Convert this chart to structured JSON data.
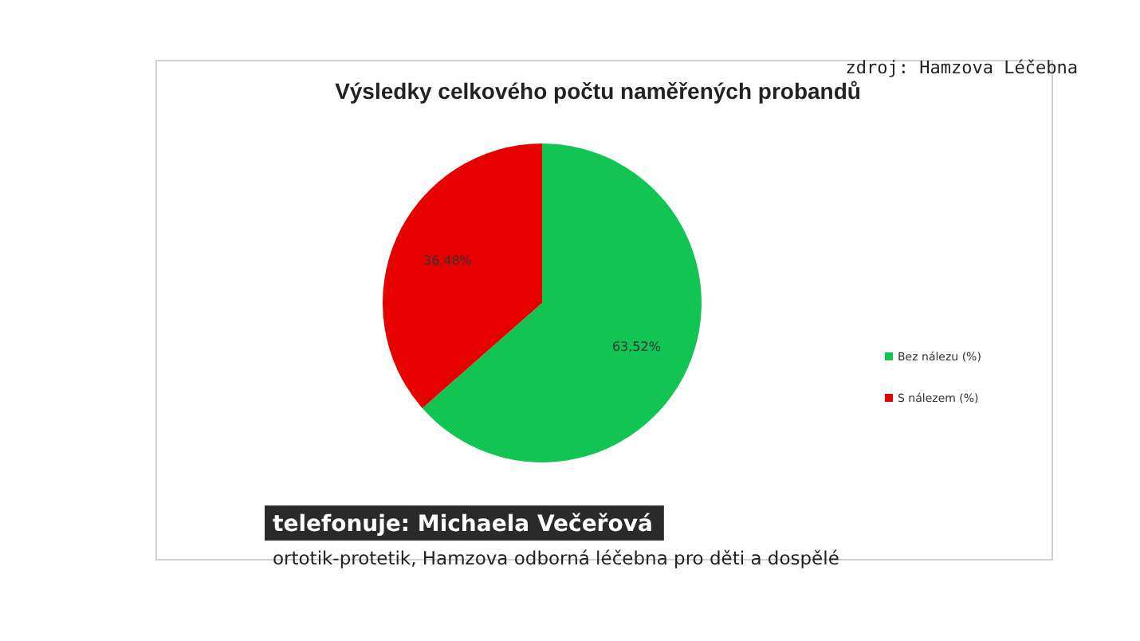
{
  "chart_data": {
    "type": "pie",
    "title": "Výsledky celkového počtu  naměřených probandů",
    "categories": [
      "Bez nálezu (%)",
      "S nálezem (%)"
    ],
    "values": [
      63.52,
      36.48
    ],
    "colors": [
      "#12c452",
      "#e60000"
    ],
    "value_labels": [
      "63,52%",
      "36,48%"
    ],
    "legend": "right",
    "annotations": [
      "zdroj: Hamzova Léčebna",
      "telefonuje: Michaela Večeřová",
      "ortotik-protetik, Hamzova odborná léčebna pro děti a dospělé"
    ]
  }
}
